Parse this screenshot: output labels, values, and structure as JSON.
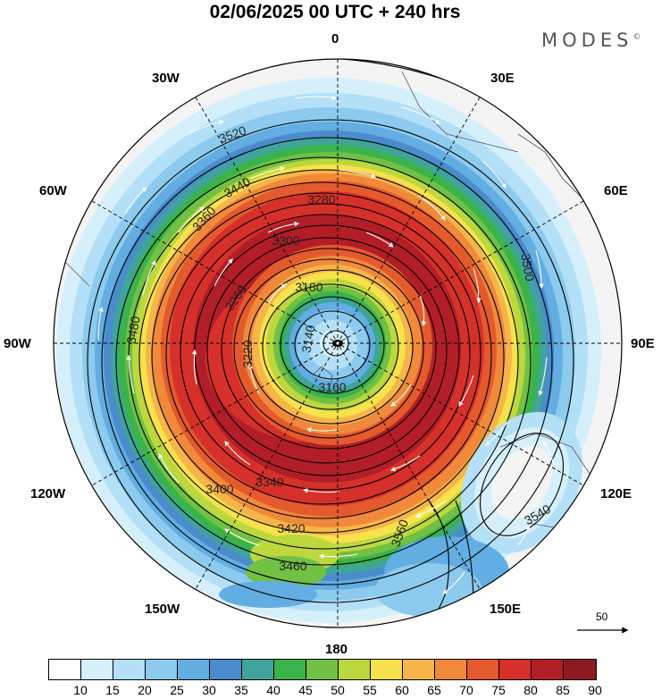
{
  "header": {
    "title": "02/06/2025  00 UTC  + 240 hrs",
    "brand": "MODES",
    "brand_mark": "©"
  },
  "map": {
    "longitude_labels": {
      "top": "0",
      "top_right": "30E",
      "right_upper": "60E",
      "right": "90E",
      "right_lower": "120E",
      "bottom_right": "150E",
      "bottom": "180",
      "bottom_left": "150W",
      "left_lower": "120W",
      "left": "90W",
      "left_upper": "60W",
      "top_left": "30W"
    },
    "contour_labels": [
      "3140",
      "3160",
      "3180",
      "3220",
      "3260",
      "3280",
      "3300",
      "3340",
      "3360",
      "3400",
      "3420",
      "3440",
      "3460",
      "3480",
      "3500",
      "3520",
      "3540",
      "3560"
    ],
    "wind_reference": {
      "value": "50",
      "unit_arrow": "reference-vector"
    }
  },
  "colorbar": {
    "colors": [
      "#ffffff",
      "#d6f0fb",
      "#b4e0f7",
      "#8ccaee",
      "#62aee2",
      "#4a8ccc",
      "#40a49a",
      "#3ab34a",
      "#72c044",
      "#bcd83e",
      "#f7e24b",
      "#f6b549",
      "#f0893a",
      "#e45a2c",
      "#d6302a",
      "#b21e28",
      "#8c1a20"
    ],
    "ticks": [
      "10",
      "15",
      "20",
      "25",
      "30",
      "35",
      "40",
      "45",
      "50",
      "55",
      "60",
      "65",
      "70",
      "75",
      "80",
      "85",
      "90"
    ]
  }
}
